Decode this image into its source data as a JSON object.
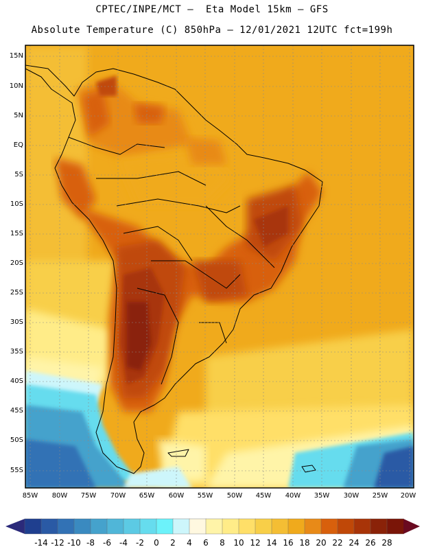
{
  "header": {
    "line1": "CPTEC/INPE/MCT –  Eta Model 15km – GFS",
    "line2": "Absolute Temperature (C) 850hPa – 12/01/2021 12UTC fct=199h"
  },
  "axes": {
    "lat_labels": [
      "15N",
      "10N",
      "5N",
      "EQ",
      "5S",
      "10S",
      "15S",
      "20S",
      "25S",
      "30S",
      "35S",
      "40S",
      "45S",
      "50S",
      "55S"
    ],
    "lon_labels": [
      "85W",
      "80W",
      "75W",
      "70W",
      "65W",
      "60W",
      "55W",
      "50W",
      "45W",
      "40W",
      "35W",
      "30W",
      "25W",
      "20W"
    ]
  },
  "colorbar": {
    "labels": [
      "-14",
      "-12",
      "-10",
      "-8",
      "-6",
      "-4",
      "-2",
      "0",
      "2",
      "4",
      "6",
      "8",
      "10",
      "12",
      "14",
      "16",
      "18",
      "20",
      "22",
      "24",
      "26",
      "28"
    ],
    "colors": [
      "#1f3f8f",
      "#2a5aa5",
      "#3272b5",
      "#3a8ac0",
      "#45a2cc",
      "#50b6d8",
      "#5ccae4",
      "#66dcee",
      "#6cf2fa",
      "#cdf6fb",
      "#fff8e0",
      "#fff4a8",
      "#ffec88",
      "#ffdf68",
      "#f8cf48",
      "#f4be34",
      "#f0aa1c",
      "#e88a18",
      "#d8600c",
      "#c04808",
      "#a83408",
      "#8a2208",
      "#7a1508"
    ]
  },
  "colors": {
    "background_field": "#f0b030",
    "coastline": "#000000"
  }
}
